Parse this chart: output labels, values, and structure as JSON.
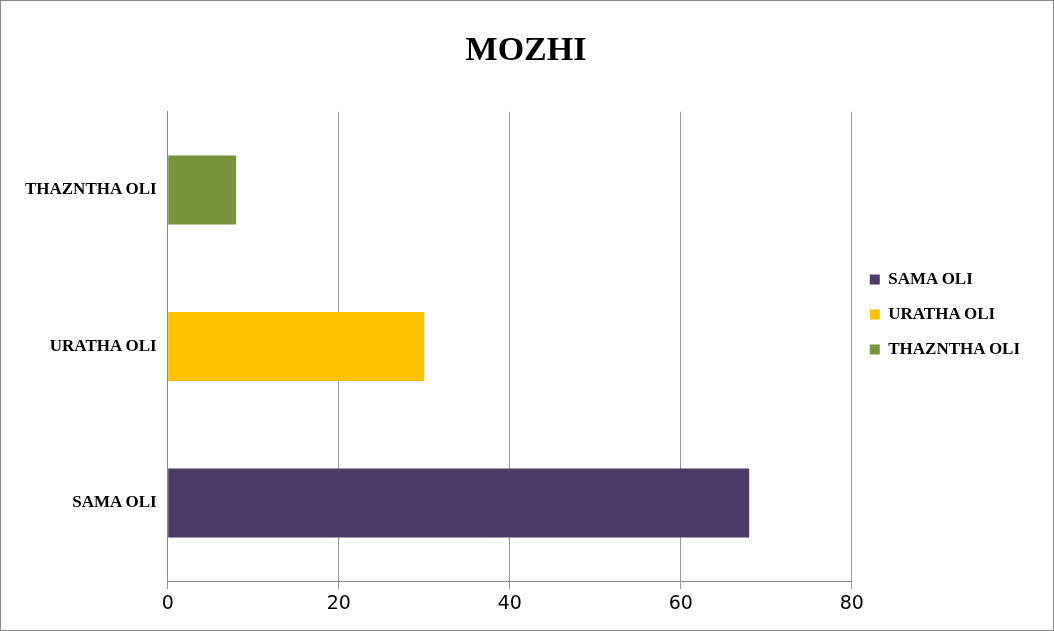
{
  "chart_data": {
    "type": "bar",
    "orientation": "horizontal",
    "title": "MOZHI",
    "categories": [
      "THAZNTHA OLI",
      "URATHA OLI",
      "SAMA OLI"
    ],
    "series": [
      {
        "name": "SAMA OLI",
        "color": "#4b3b66",
        "values": [
          null,
          null,
          68
        ]
      },
      {
        "name": "URATHA OLI",
        "color": "#ffc000",
        "values": [
          null,
          30,
          null
        ]
      },
      {
        "name": "THAZNTHA OLI",
        "color": "#77933c",
        "values": [
          8,
          null,
          null
        ]
      }
    ],
    "xlim": [
      0,
      80
    ],
    "xticks": [
      0,
      20,
      40,
      60,
      80
    ],
    "grid": "x",
    "legend": "right"
  }
}
